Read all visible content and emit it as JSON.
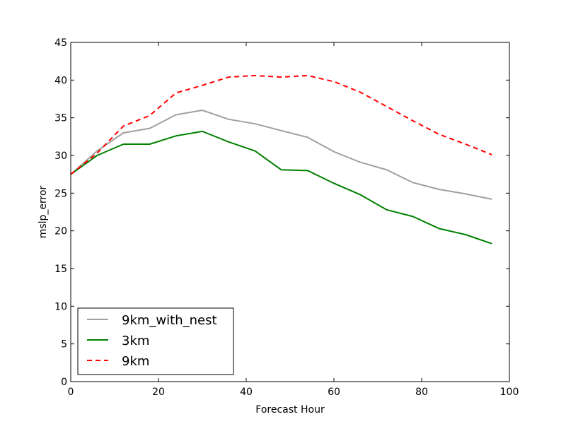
{
  "chart_data": {
    "type": "line",
    "title": "",
    "xlabel": "Forecast Hour",
    "ylabel": "mslp_error",
    "xlim": [
      0,
      100
    ],
    "ylim": [
      0,
      45
    ],
    "x_ticks": [
      0,
      20,
      40,
      60,
      80,
      100
    ],
    "y_ticks": [
      0,
      5,
      10,
      15,
      20,
      25,
      30,
      35,
      40,
      45
    ],
    "grid": false,
    "legend_position": "lower-left",
    "x": [
      0,
      6,
      12,
      18,
      24,
      30,
      36,
      42,
      48,
      54,
      60,
      66,
      72,
      78,
      84,
      90,
      96
    ],
    "series": [
      {
        "name": "9km_with_nest",
        "color": "#a0a0a0",
        "style": "solid",
        "values": [
          27.5,
          30.6,
          33.0,
          33.6,
          35.4,
          36.0,
          34.8,
          34.2,
          33.3,
          32.4,
          30.5,
          29.1,
          28.1,
          26.4,
          25.5,
          24.9,
          24.2
        ]
      },
      {
        "name": "3km",
        "color": "#008000",
        "style": "solid",
        "values": [
          27.5,
          30.0,
          31.5,
          31.5,
          32.6,
          33.2,
          31.8,
          30.6,
          28.1,
          28.0,
          26.3,
          24.8,
          22.8,
          21.9,
          20.3,
          19.5,
          18.3
        ]
      },
      {
        "name": "9km",
        "color": "#ff0000",
        "style": "dashed",
        "values": [
          27.5,
          30.3,
          33.9,
          35.3,
          38.3,
          39.3,
          40.4,
          40.6,
          40.4,
          40.6,
          39.8,
          38.4,
          36.5,
          34.6,
          32.8,
          31.5,
          30.1
        ]
      }
    ]
  }
}
